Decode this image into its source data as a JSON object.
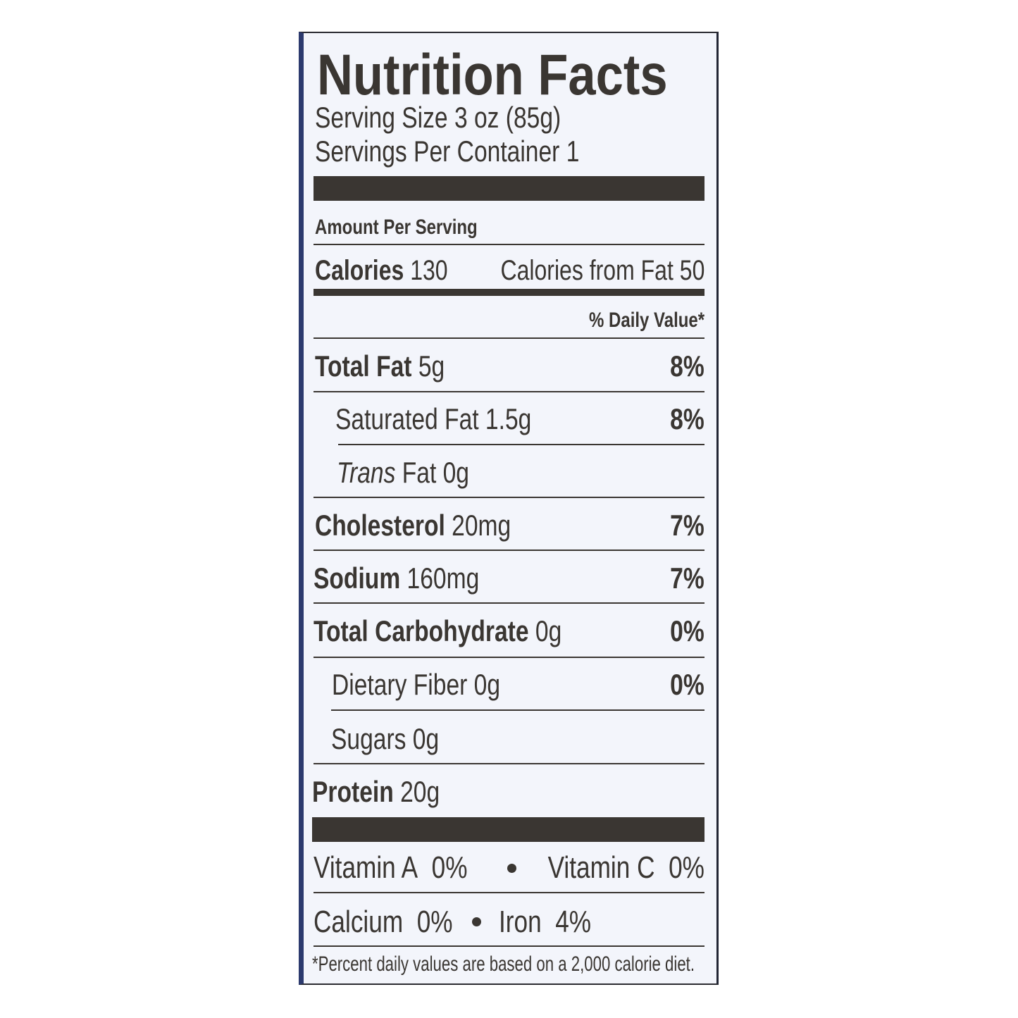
{
  "title": "Nutrition Facts",
  "serving_size": "Serving Size 3 oz (85g)",
  "servings_per_container": "Servings Per Container 1",
  "amount_per_serving": "Amount Per Serving",
  "calories": {
    "label": "Calories",
    "value": "130",
    "from_fat_label": "Calories from Fat",
    "from_fat_value": "50"
  },
  "daily_value_header": "% Daily Value*",
  "nutrients": [
    {
      "label": "Total Fat",
      "amount": "5g",
      "dv": "8%"
    },
    {
      "label": "Saturated Fat",
      "amount": "1.5g",
      "dv": "8%"
    },
    {
      "label_italic": "Trans",
      "label": "Fat",
      "amount": "0g",
      "dv": ""
    },
    {
      "label": "Cholesterol",
      "amount": "20mg",
      "dv": "7%"
    },
    {
      "label": "Sodium",
      "amount": "160mg",
      "dv": "7%"
    },
    {
      "label": "Total Carbohydrate",
      "amount": "0g",
      "dv": "0%"
    },
    {
      "label": "Dietary Fiber",
      "amount": "0g",
      "dv": "0%"
    },
    {
      "label": "Sugars",
      "amount": "0g",
      "dv": ""
    },
    {
      "label": "Protein",
      "amount": "20g",
      "dv": ""
    }
  ],
  "vitamins": [
    {
      "label": "Vitamin A",
      "value": "0%"
    },
    {
      "label": "Vitamin C",
      "value": "0%"
    },
    {
      "label": "Calcium",
      "value": "0%"
    },
    {
      "label": "Iron",
      "value": "4%"
    }
  ],
  "footnote": "*Percent daily values are based on a 2,000 calorie diet.",
  "colors": {
    "text": "#3a3632",
    "background": "#f3f5fb",
    "border": "#2c3a6e"
  }
}
